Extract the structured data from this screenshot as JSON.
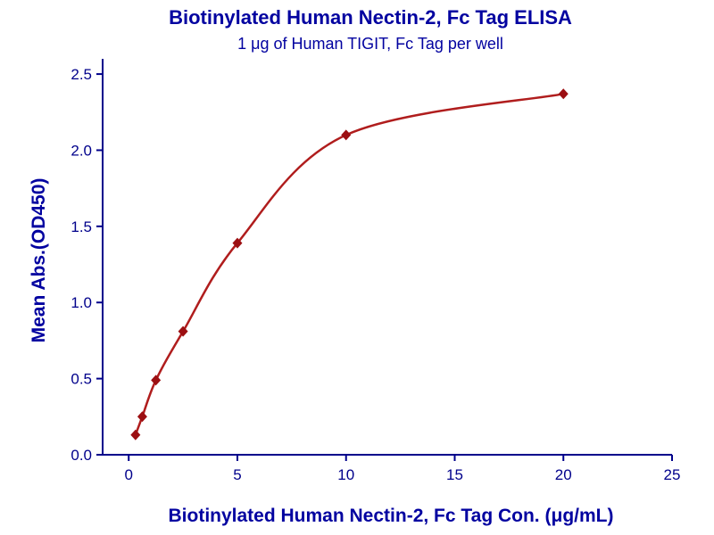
{
  "page": {
    "background": "#ffffff"
  },
  "chart_data": {
    "type": "scatter",
    "title": "Biotinylated Human Nectin-2, Fc Tag ELISA",
    "subtitle": "1 μg of Human TIGIT, Fc Tag per well",
    "xlabel": "Biotinylated Human Nectin-2, Fc Tag Con. (μg/mL)",
    "ylabel": "Mean Abs.(OD450)",
    "series": [
      {
        "name": "Biotinylated Human Nectin-2, Fc Tag",
        "x": [
          0.3125,
          0.625,
          1.25,
          2.5,
          5,
          10,
          20
        ],
        "y": [
          0.13,
          0.25,
          0.49,
          0.81,
          1.39,
          2.1,
          2.37
        ],
        "marker": "diamond",
        "fit": "smooth sigmoidal binding curve"
      }
    ],
    "xticks": [
      "0",
      "5",
      "10",
      "15",
      "20",
      "25"
    ],
    "yticks": [
      "0.0",
      "0.5",
      "1.0",
      "1.5",
      "2.0",
      "2.5"
    ],
    "xlim": [
      -1.2,
      25
    ],
    "ylim": [
      0,
      2.6
    ],
    "grid": false,
    "legend": "none",
    "colors": {
      "heading": "#0202a0",
      "axis": "#00008b",
      "line": "#b01d1d",
      "marker": "#9c0f12"
    }
  }
}
